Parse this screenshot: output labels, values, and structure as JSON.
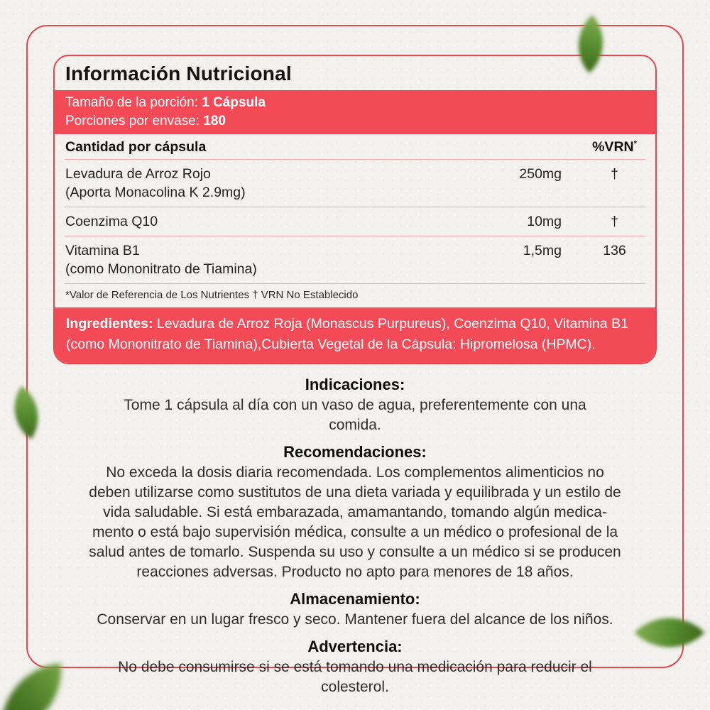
{
  "label": {
    "title": "Información Nutricional",
    "serving": {
      "size_label": "Tamaño de la porción: ",
      "size_value": "1 Cápsula",
      "servings_label": "Porciones por envase: ",
      "servings_value": "180"
    },
    "table": {
      "header_left": "Cantidad por cápsula",
      "header_right": "%VRN",
      "header_right_note": "*",
      "rows": [
        {
          "name": "Levadura de Arroz Rojo",
          "detail": "(Aporta Monacolina K 2.9mg)",
          "amount": "250mg",
          "vrn": "†"
        },
        {
          "name": "Coenzima Q10",
          "detail": "",
          "amount": "10mg",
          "vrn": "†"
        },
        {
          "name": "Vitamina B1",
          "detail": "(como Mononitrato de Tiamina)",
          "amount": "1,5mg",
          "vrn": "136"
        }
      ],
      "footnote": "*Valor de Referencia de Los Nutrientes † VRN No Establecido"
    },
    "ingredients": {
      "label": "Ingredientes:",
      "text": "Levadura de Arroz Roja (Monascus Purpureus), Coenzima Q10, Vitamina B1 (como Mononitrato de Tiamina),Cubierta Vegetal de la Cápsula: Hipromelosa (HPMC)."
    }
  },
  "sections": [
    {
      "heading": "Indicaciones:",
      "lines": [
        "Tome 1 cápsula al día con un vaso de agua, preferentemente con una",
        "comida."
      ]
    },
    {
      "heading": "Recomendaciones:",
      "lines": [
        "No exceda la dosis diaria recomendada. Los complementos alimenticios no",
        "deben utilizarse como sustitutos de una dieta variada y equilibrada y un estilo de",
        "vida saludable. Si está embarazada, amamantando, tomando algún medica-",
        "mento o está bajo supervisión médica, consulte a un médico o profesional de la",
        "salud antes de tomarlo. Suspenda su uso y consulte a un médico si se producen",
        "reacciones adversas. Producto no apto para menores de 18 años."
      ]
    },
    {
      "heading": "Almacenamiento:",
      "lines": [
        "Conservar en un lugar fresco y seco. Mantener fuera del alcance de los niños."
      ]
    },
    {
      "heading": "Advertencia:",
      "lines": [
        "No debe consumirse si se está tomando una medicación para reducir el",
        "colesterol."
      ]
    }
  ],
  "colors": {
    "accent_red": "#F24B57",
    "border_red": "#E8454F",
    "divider_pink": "#F2ACB1",
    "leaf_green": "#558A2E",
    "text_dark": "#1E1E1E",
    "paper_background": "#F2F1ED"
  }
}
